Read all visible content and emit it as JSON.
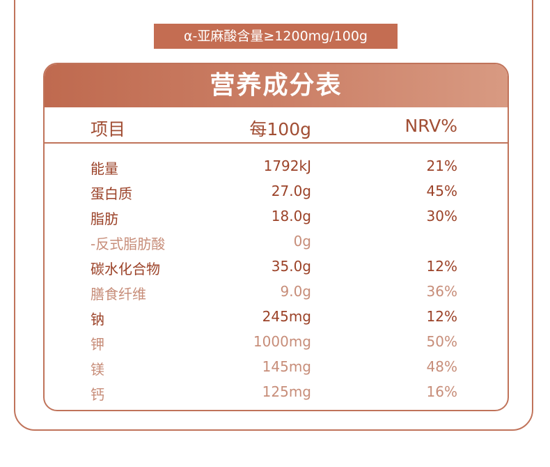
{
  "badge": "α-亚麻酸含量≥1200mg/100g",
  "table": {
    "title": "营养成分表",
    "headers": {
      "item": "项目",
      "per100g": "每100g",
      "nrv": "NRV%"
    },
    "rows": [
      {
        "name": "能量",
        "amount": "1792kJ",
        "nrv": "21%",
        "style": "strong"
      },
      {
        "name": "蛋白质",
        "amount": "27.0g",
        "nrv": "45%",
        "style": "strong"
      },
      {
        "name": "脂肪",
        "amount": "18.0g",
        "nrv": "30%",
        "style": "strong"
      },
      {
        "name": "-反式脂肪酸",
        "amount": "0g",
        "nrv": "",
        "style": "soft"
      },
      {
        "name": "碳水化合物",
        "amount": "35.0g",
        "nrv": "12%",
        "style": "strong"
      },
      {
        "name": "膳食纤维",
        "amount": "9.0g",
        "nrv": "36%",
        "style": "soft"
      },
      {
        "name": "钠",
        "amount": "245mg",
        "nrv": "12%",
        "style": "strong"
      },
      {
        "name": "钾",
        "amount": "1000mg",
        "nrv": "50%",
        "style": "soft"
      },
      {
        "name": "镁",
        "amount": "145mg",
        "nrv": "48%",
        "style": "soft"
      },
      {
        "name": "钙",
        "amount": "125mg",
        "nrv": "16%",
        "style": "soft"
      }
    ]
  },
  "colors": {
    "accent": "#c46d52",
    "text_strong": "#9b4228",
    "text_soft": "#c78d79"
  }
}
